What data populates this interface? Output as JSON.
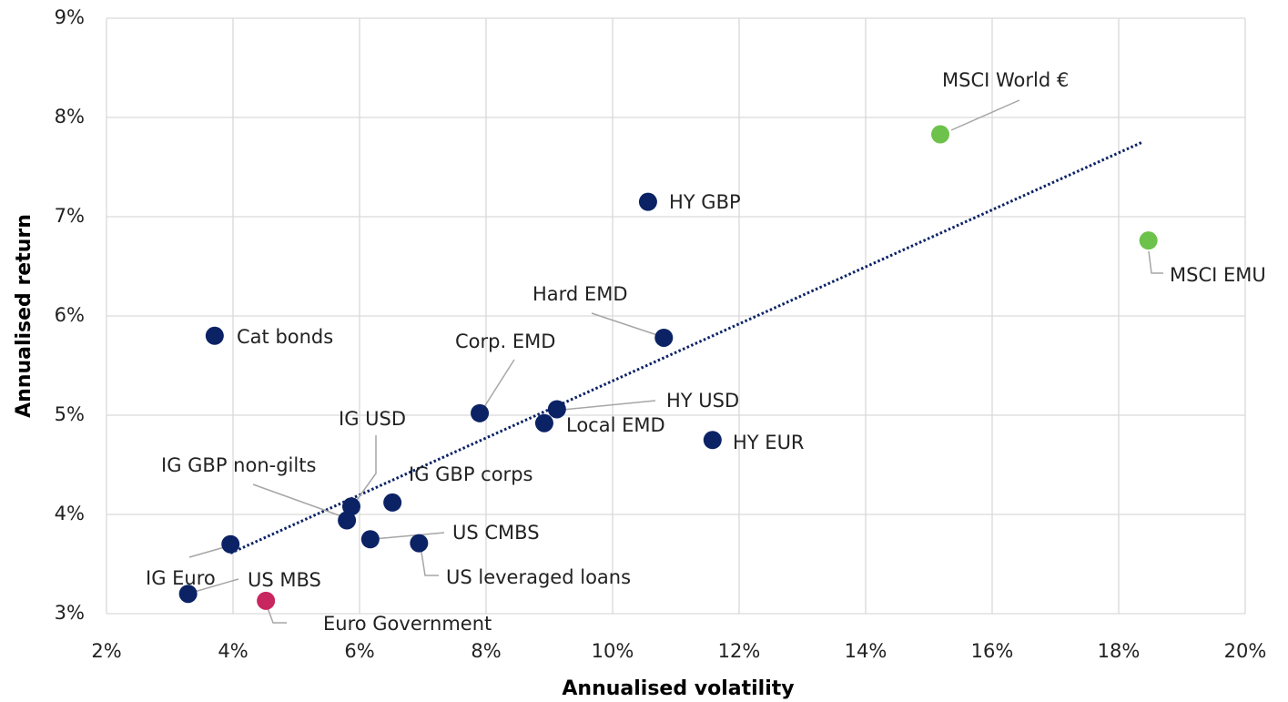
{
  "chart_data": {
    "type": "scatter",
    "xlabel": "Annualised volatility",
    "ylabel": "Annualised return",
    "xlim": [
      2,
      20
    ],
    "ylim": [
      3,
      9
    ],
    "xticks": [
      {
        "value": 2,
        "label": "2%"
      },
      {
        "value": 4,
        "label": "4%"
      },
      {
        "value": 6,
        "label": "6%"
      },
      {
        "value": 8,
        "label": "8%"
      },
      {
        "value": 10,
        "label": "10%"
      },
      {
        "value": 12,
        "label": "12%"
      },
      {
        "value": 14,
        "label": "14%"
      },
      {
        "value": 16,
        "label": "16%"
      },
      {
        "value": 18,
        "label": "18%"
      },
      {
        "value": 20,
        "label": "20%"
      }
    ],
    "yticks": [
      {
        "value": 3,
        "label": "3%"
      },
      {
        "value": 4,
        "label": "4%"
      },
      {
        "value": 5,
        "label": "5%"
      },
      {
        "value": 6,
        "label": "6%"
      },
      {
        "value": 7,
        "label": "7%"
      },
      {
        "value": 8,
        "label": "8%"
      },
      {
        "value": 9,
        "label": "9%"
      }
    ],
    "grid": true,
    "points": [
      {
        "label": "MSCI World €",
        "x": 15.18,
        "y": 7.83,
        "color": "#6cc24a"
      },
      {
        "label": "MSCI EMU",
        "x": 18.47,
        "y": 6.76,
        "color": "#6cc24a"
      },
      {
        "label": "HY GBP",
        "x": 10.56,
        "y": 7.15,
        "color": "#0b2265"
      },
      {
        "label": "Hard EMD",
        "x": 10.81,
        "y": 5.78,
        "color": "#0b2265"
      },
      {
        "label": "Cat bonds",
        "x": 3.71,
        "y": 5.8,
        "color": "#0b2265"
      },
      {
        "label": "Corp. EMD",
        "x": 7.9,
        "y": 5.02,
        "color": "#0b2265"
      },
      {
        "label": "HY USD",
        "x": 9.12,
        "y": 5.06,
        "color": "#0b2265"
      },
      {
        "label": "Local EMD",
        "x": 8.92,
        "y": 4.92,
        "color": "#0b2265"
      },
      {
        "label": "HY EUR",
        "x": 11.58,
        "y": 4.75,
        "color": "#0b2265"
      },
      {
        "label": "IG USD",
        "x": 5.87,
        "y": 4.08,
        "color": "#0b2265"
      },
      {
        "label": "IG GBP non-gilts",
        "x": 5.8,
        "y": 3.94,
        "color": "#0b2265"
      },
      {
        "label": "IG GBP corps",
        "x": 6.52,
        "y": 4.12,
        "color": "#0b2265"
      },
      {
        "label": "US CMBS",
        "x": 6.17,
        "y": 3.75,
        "color": "#0b2265"
      },
      {
        "label": "US leveraged loans",
        "x": 6.94,
        "y": 3.71,
        "color": "#0b2265"
      },
      {
        "label": "IG Euro",
        "x": 3.96,
        "y": 3.7,
        "color": "#0b2265"
      },
      {
        "label": "US MBS",
        "x": 3.29,
        "y": 3.2,
        "color": "#0b2265"
      },
      {
        "label": "Euro Government",
        "x": 4.52,
        "y": 3.13,
        "color": "#c8265f"
      }
    ],
    "trendline": {
      "x": [
        3.96,
        18.37
      ],
      "y": [
        3.61,
        7.75
      ],
      "color": "#0b2265"
    }
  }
}
